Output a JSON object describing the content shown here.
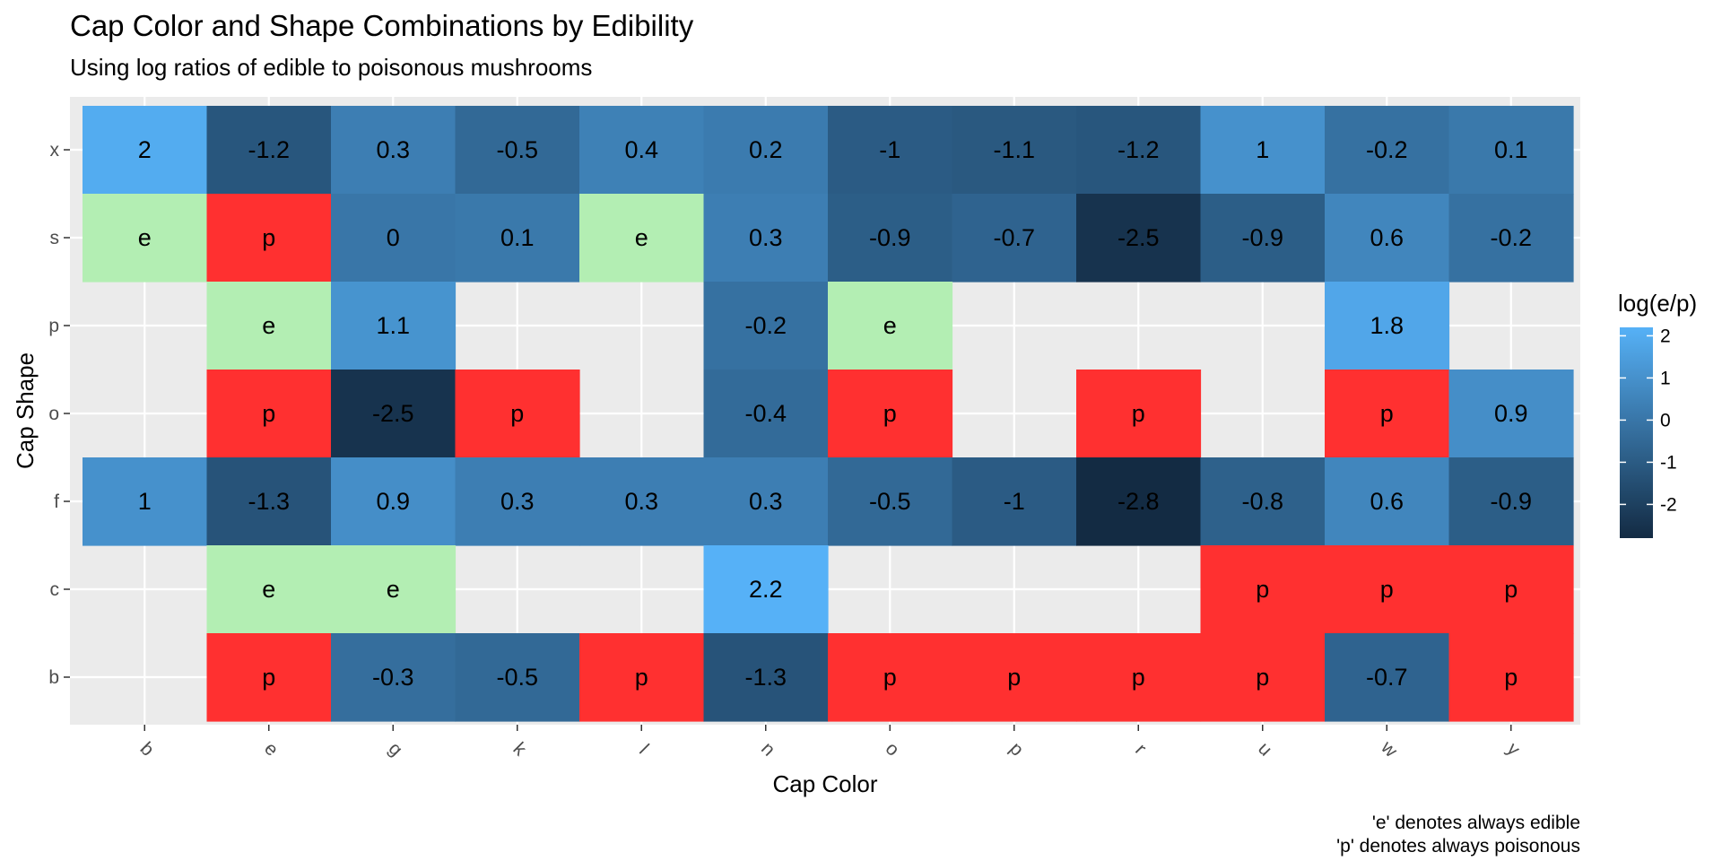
{
  "chart_data": {
    "type": "heatmap",
    "title": "Cap Color and Shape Combinations by Edibility",
    "subtitle": "Using log ratios of edible to poisonous mushrooms",
    "xlabel": "Cap Color",
    "ylabel": "Cap Shape",
    "x_categories": [
      "b",
      "e",
      "g",
      "k",
      "l",
      "n",
      "o",
      "p",
      "r",
      "u",
      "w",
      "y"
    ],
    "y_categories": [
      "x",
      "s",
      "p",
      "o",
      "f",
      "c",
      "b"
    ],
    "cells": [
      {
        "x": "b",
        "y": "x",
        "label": "2",
        "value": 2
      },
      {
        "x": "e",
        "y": "x",
        "label": "-1.2",
        "value": -1.2
      },
      {
        "x": "g",
        "y": "x",
        "label": "0.3",
        "value": 0.3
      },
      {
        "x": "k",
        "y": "x",
        "label": "-0.5",
        "value": -0.5
      },
      {
        "x": "l",
        "y": "x",
        "label": "0.4",
        "value": 0.4
      },
      {
        "x": "n",
        "y": "x",
        "label": "0.2",
        "value": 0.2
      },
      {
        "x": "o",
        "y": "x",
        "label": "-1",
        "value": -1
      },
      {
        "x": "p",
        "y": "x",
        "label": "-1.1",
        "value": -1.1
      },
      {
        "x": "r",
        "y": "x",
        "label": "-1.2",
        "value": -1.2
      },
      {
        "x": "u",
        "y": "x",
        "label": "1",
        "value": 1
      },
      {
        "x": "w",
        "y": "x",
        "label": "-0.2",
        "value": -0.2
      },
      {
        "x": "y",
        "y": "x",
        "label": "0.1",
        "value": 0.1
      },
      {
        "x": "b",
        "y": "s",
        "label": "e",
        "value": null
      },
      {
        "x": "e",
        "y": "s",
        "label": "p",
        "value": null
      },
      {
        "x": "g",
        "y": "s",
        "label": "0",
        "value": 0
      },
      {
        "x": "k",
        "y": "s",
        "label": "0.1",
        "value": 0.1
      },
      {
        "x": "l",
        "y": "s",
        "label": "e",
        "value": null
      },
      {
        "x": "n",
        "y": "s",
        "label": "0.3",
        "value": 0.3
      },
      {
        "x": "o",
        "y": "s",
        "label": "-0.9",
        "value": -0.9
      },
      {
        "x": "p",
        "y": "s",
        "label": "-0.7",
        "value": -0.7
      },
      {
        "x": "r",
        "y": "s",
        "label": "-2.5",
        "value": -2.5
      },
      {
        "x": "u",
        "y": "s",
        "label": "-0.9",
        "value": -0.9
      },
      {
        "x": "w",
        "y": "s",
        "label": "0.6",
        "value": 0.6
      },
      {
        "x": "y",
        "y": "s",
        "label": "-0.2",
        "value": -0.2
      },
      {
        "x": "e",
        "y": "p",
        "label": "e",
        "value": null
      },
      {
        "x": "g",
        "y": "p",
        "label": "1.1",
        "value": 1.1
      },
      {
        "x": "n",
        "y": "p",
        "label": "-0.2",
        "value": -0.2
      },
      {
        "x": "o",
        "y": "p",
        "label": "e",
        "value": null
      },
      {
        "x": "w",
        "y": "p",
        "label": "1.8",
        "value": 1.8
      },
      {
        "x": "e",
        "y": "o",
        "label": "p",
        "value": null
      },
      {
        "x": "g",
        "y": "o",
        "label": "-2.5",
        "value": -2.5
      },
      {
        "x": "k",
        "y": "o",
        "label": "p",
        "value": null
      },
      {
        "x": "n",
        "y": "o",
        "label": "-0.4",
        "value": -0.4
      },
      {
        "x": "o",
        "y": "o",
        "label": "p",
        "value": null
      },
      {
        "x": "r",
        "y": "o",
        "label": "p",
        "value": null
      },
      {
        "x": "w",
        "y": "o",
        "label": "p",
        "value": null
      },
      {
        "x": "y",
        "y": "o",
        "label": "0.9",
        "value": 0.9
      },
      {
        "x": "b",
        "y": "f",
        "label": "1",
        "value": 1
      },
      {
        "x": "e",
        "y": "f",
        "label": "-1.3",
        "value": -1.3
      },
      {
        "x": "g",
        "y": "f",
        "label": "0.9",
        "value": 0.9
      },
      {
        "x": "k",
        "y": "f",
        "label": "0.3",
        "value": 0.3
      },
      {
        "x": "l",
        "y": "f",
        "label": "0.3",
        "value": 0.3
      },
      {
        "x": "n",
        "y": "f",
        "label": "0.3",
        "value": 0.3
      },
      {
        "x": "o",
        "y": "f",
        "label": "-0.5",
        "value": -0.5
      },
      {
        "x": "p",
        "y": "f",
        "label": "-1",
        "value": -1
      },
      {
        "x": "r",
        "y": "f",
        "label": "-2.8",
        "value": -2.8
      },
      {
        "x": "u",
        "y": "f",
        "label": "-0.8",
        "value": -0.8
      },
      {
        "x": "w",
        "y": "f",
        "label": "0.6",
        "value": 0.6
      },
      {
        "x": "y",
        "y": "f",
        "label": "-0.9",
        "value": -0.9
      },
      {
        "x": "e",
        "y": "c",
        "label": "e",
        "value": null
      },
      {
        "x": "g",
        "y": "c",
        "label": "e",
        "value": null
      },
      {
        "x": "n",
        "y": "c",
        "label": "2.2",
        "value": 2.2
      },
      {
        "x": "u",
        "y": "c",
        "label": "p",
        "value": null
      },
      {
        "x": "w",
        "y": "c",
        "label": "p",
        "value": null
      },
      {
        "x": "y",
        "y": "c",
        "label": "p",
        "value": null
      },
      {
        "x": "e",
        "y": "b",
        "label": "p",
        "value": null
      },
      {
        "x": "g",
        "y": "b",
        "label": "-0.3",
        "value": -0.3
      },
      {
        "x": "k",
        "y": "b",
        "label": "-0.5",
        "value": -0.5
      },
      {
        "x": "l",
        "y": "b",
        "label": "p",
        "value": null
      },
      {
        "x": "n",
        "y": "b",
        "label": "-1.3",
        "value": -1.3
      },
      {
        "x": "o",
        "y": "b",
        "label": "p",
        "value": null
      },
      {
        "x": "p",
        "y": "b",
        "label": "p",
        "value": null
      },
      {
        "x": "r",
        "y": "b",
        "label": "p",
        "value": null
      },
      {
        "x": "u",
        "y": "b",
        "label": "p",
        "value": null
      },
      {
        "x": "w",
        "y": "b",
        "label": "-0.7",
        "value": -0.7
      },
      {
        "x": "y",
        "y": "b",
        "label": "p",
        "value": null
      }
    ],
    "legend": {
      "title": "log(e/p)",
      "ticks": [
        2,
        1,
        0,
        -1,
        -2
      ],
      "tick_labels": [
        "2",
        "1",
        "0",
        "-1",
        "-2"
      ],
      "range": [
        -2.8,
        2.2
      ],
      "low_color": "#132b43",
      "high_color": "#56b1f7",
      "placement": "right"
    },
    "categorical_colors": {
      "e": "#b3eeb3",
      "p": "#ff3030"
    },
    "panel_background": "#ebebeb",
    "grid": true,
    "caption_lines": [
      "'e' denotes always edible",
      "'p' denotes always poisonous"
    ]
  }
}
